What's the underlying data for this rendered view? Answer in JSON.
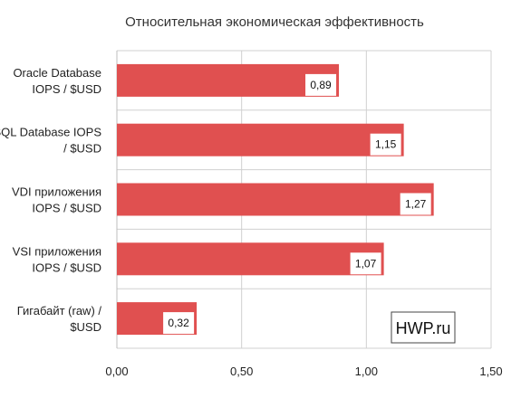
{
  "chart_data": {
    "type": "bar",
    "orientation": "horizontal",
    "title": "Относительная экономическая эффективность",
    "categories": [
      [
        "Oracle Database",
        "IOPS / $USD"
      ],
      [
        "SQL Database IOPS",
        "/ $USD"
      ],
      [
        "VDI приложения",
        "IOPS / $USD"
      ],
      [
        "VSI приложения",
        "IOPS / $USD"
      ],
      [
        "Гигабайт (raw) /",
        "$USD"
      ]
    ],
    "values": [
      0.89,
      1.15,
      1.27,
      1.07,
      0.32
    ],
    "value_labels": [
      "0,89",
      "1,15",
      "1,27",
      "1,07",
      "0,32"
    ],
    "x_ticks": [
      "0,00",
      "0,50",
      "1,00",
      "1,50"
    ],
    "xlim": [
      0,
      1.5
    ],
    "grid": true,
    "bar_color": "#e05050",
    "watermark": "HWP.ru"
  }
}
